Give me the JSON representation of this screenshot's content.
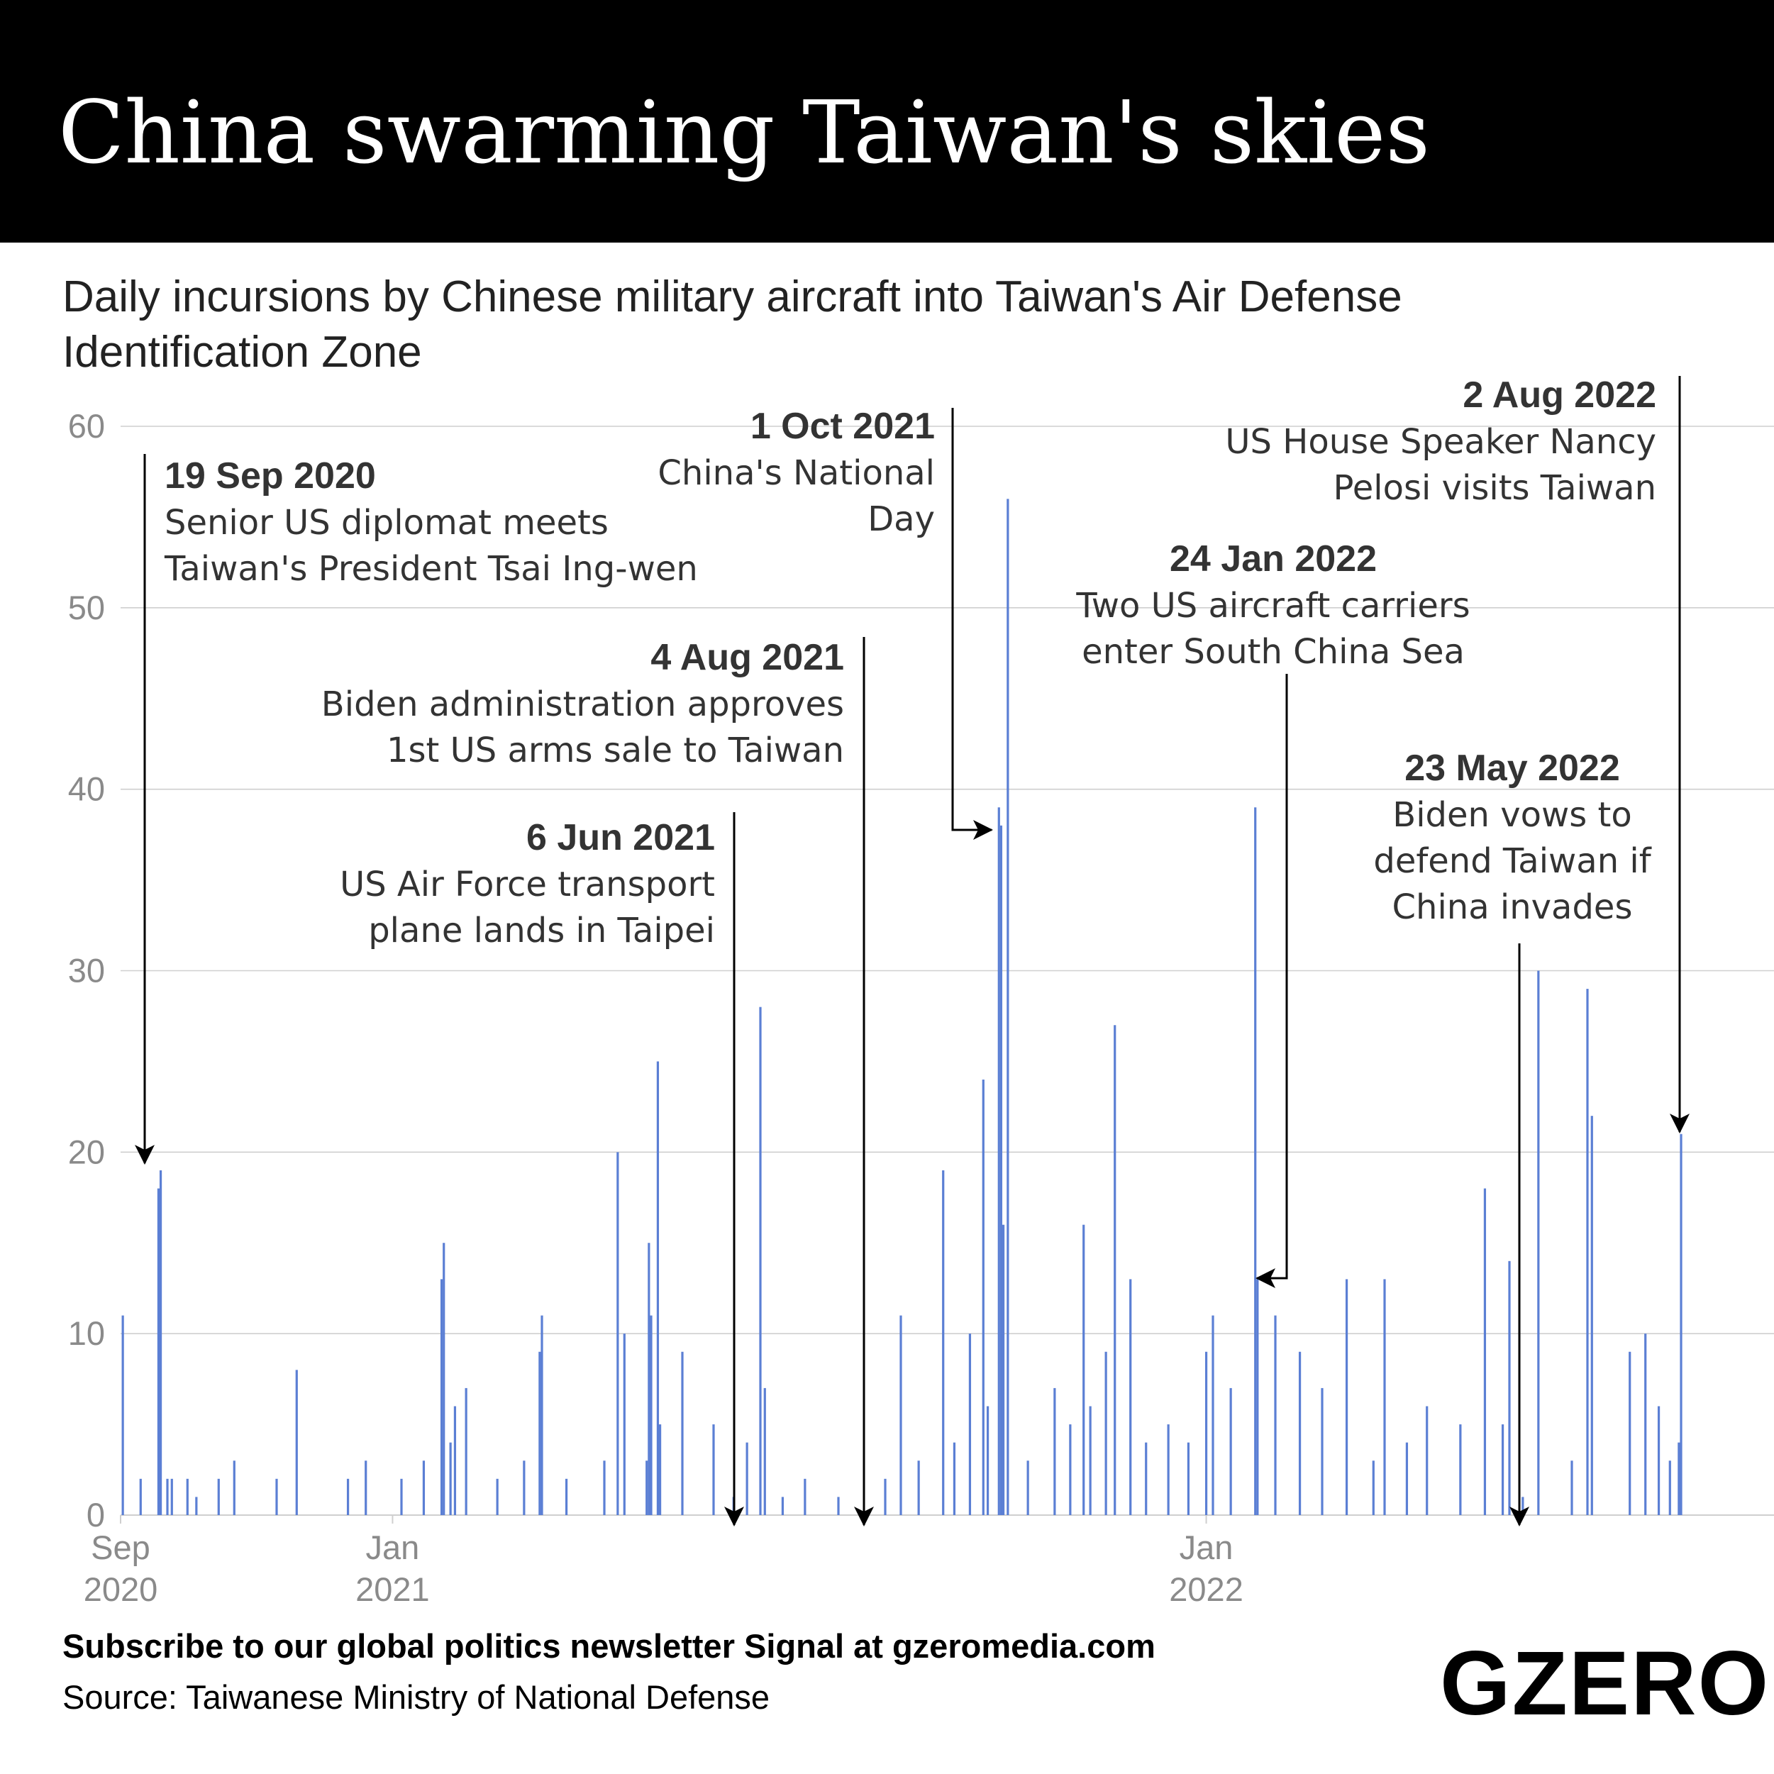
{
  "header": {
    "title": "China swarming Taiwan's skies"
  },
  "subtitle": "Daily incursions by Chinese military aircraft into Taiwan's Air Defense Identification Zone",
  "footer": {
    "cta": "Subscribe to our global politics newsletter Signal at gzeromedia.com",
    "source": "Source: Taiwanese Ministry of National Defense",
    "logo": "GZERO"
  },
  "colors": {
    "bar": "#5b7fd4",
    "grid": "#cfcfcf",
    "axis_text": "#8a8a8a",
    "annotation": "#333333",
    "header_bg": "#000000"
  },
  "chart_data": {
    "type": "bar",
    "title": "",
    "xlabel": "",
    "ylabel": "",
    "ylim": [
      0,
      60
    ],
    "yticks": [
      "0",
      "10",
      "20",
      "30",
      "40",
      "50",
      "60"
    ],
    "xticks": [
      {
        "date": "2020-09-01",
        "line1": "Sep",
        "line2": "2020"
      },
      {
        "date": "2021-01-01",
        "line1": "Jan",
        "line2": "2021"
      },
      {
        "date": "2022-01-01",
        "line1": "Jan",
        "line2": "2022"
      }
    ],
    "xlim": [
      "2020-09-01",
      "2022-08-02"
    ],
    "grid": true,
    "series": [
      {
        "values": [
          [
            "2020-09-02",
            11
          ],
          [
            "2020-09-10",
            2
          ],
          [
            "2020-09-18",
            18
          ],
          [
            "2020-09-19",
            19
          ],
          [
            "2020-09-22",
            2
          ],
          [
            "2020-09-24",
            2
          ],
          [
            "2020-10-01",
            2
          ],
          [
            "2020-10-05",
            1
          ],
          [
            "2020-10-15",
            2
          ],
          [
            "2020-10-22",
            3
          ],
          [
            "2020-11-10",
            2
          ],
          [
            "2020-11-19",
            8
          ],
          [
            "2020-12-12",
            2
          ],
          [
            "2020-12-20",
            3
          ],
          [
            "2021-01-05",
            2
          ],
          [
            "2021-01-15",
            3
          ],
          [
            "2021-01-23",
            13
          ],
          [
            "2021-01-24",
            15
          ],
          [
            "2021-01-27",
            4
          ],
          [
            "2021-01-29",
            6
          ],
          [
            "2021-02-03",
            7
          ],
          [
            "2021-02-17",
            2
          ],
          [
            "2021-03-01",
            3
          ],
          [
            "2021-03-08",
            9
          ],
          [
            "2021-03-09",
            11
          ],
          [
            "2021-03-20",
            2
          ],
          [
            "2021-04-06",
            3
          ],
          [
            "2021-04-12",
            20
          ],
          [
            "2021-04-15",
            10
          ],
          [
            "2021-04-25",
            3
          ],
          [
            "2021-04-26",
            15
          ],
          [
            "2021-04-27",
            11
          ],
          [
            "2021-04-30",
            25
          ],
          [
            "2021-05-01",
            5
          ],
          [
            "2021-05-11",
            9
          ],
          [
            "2021-05-25",
            5
          ],
          [
            "2021-06-03",
            1
          ],
          [
            "2021-06-09",
            4
          ],
          [
            "2021-06-15",
            28
          ],
          [
            "2021-06-17",
            7
          ],
          [
            "2021-06-25",
            1
          ],
          [
            "2021-07-05",
            2
          ],
          [
            "2021-07-20",
            1
          ],
          [
            "2021-08-10",
            2
          ],
          [
            "2021-08-17",
            11
          ],
          [
            "2021-08-25",
            3
          ],
          [
            "2021-09-05",
            19
          ],
          [
            "2021-09-10",
            4
          ],
          [
            "2021-09-17",
            10
          ],
          [
            "2021-09-23",
            24
          ],
          [
            "2021-09-25",
            6
          ],
          [
            "2021-09-30",
            39
          ],
          [
            "2021-10-01",
            38
          ],
          [
            "2021-10-02",
            16
          ],
          [
            "2021-10-04",
            56
          ],
          [
            "2021-10-13",
            3
          ],
          [
            "2021-10-25",
            7
          ],
          [
            "2021-11-01",
            5
          ],
          [
            "2021-11-07",
            16
          ],
          [
            "2021-11-10",
            6
          ],
          [
            "2021-11-17",
            9
          ],
          [
            "2021-11-21",
            27
          ],
          [
            "2021-11-28",
            13
          ],
          [
            "2021-12-05",
            4
          ],
          [
            "2021-12-15",
            5
          ],
          [
            "2021-12-24",
            4
          ],
          [
            "2022-01-01",
            9
          ],
          [
            "2022-01-04",
            11
          ],
          [
            "2022-01-12",
            7
          ],
          [
            "2022-01-23",
            39
          ],
          [
            "2022-01-24",
            13
          ],
          [
            "2022-02-01",
            11
          ],
          [
            "2022-02-12",
            9
          ],
          [
            "2022-02-22",
            7
          ],
          [
            "2022-03-05",
            13
          ],
          [
            "2022-03-17",
            3
          ],
          [
            "2022-03-22",
            13
          ],
          [
            "2022-04-01",
            4
          ],
          [
            "2022-04-10",
            6
          ],
          [
            "2022-04-25",
            5
          ],
          [
            "2022-05-06",
            18
          ],
          [
            "2022-05-14",
            5
          ],
          [
            "2022-05-17",
            14
          ],
          [
            "2022-05-23",
            1
          ],
          [
            "2022-05-30",
            30
          ],
          [
            "2022-06-14",
            3
          ],
          [
            "2022-06-21",
            29
          ],
          [
            "2022-06-23",
            22
          ],
          [
            "2022-07-10",
            9
          ],
          [
            "2022-07-17",
            10
          ],
          [
            "2022-07-23",
            6
          ],
          [
            "2022-07-28",
            3
          ],
          [
            "2022-08-01",
            4
          ],
          [
            "2022-08-02",
            21
          ]
        ]
      }
    ],
    "annotations": [
      {
        "date": "2020-09-19",
        "title": "19 Sep 2020",
        "lines": [
          "Senior US diplomat meets",
          "Taiwan's President Tsai Ing-wen"
        ]
      },
      {
        "date": "2021-06-06",
        "title": "6 Jun 2021",
        "lines": [
          "US Air Force transport",
          "plane lands in Taipei"
        ]
      },
      {
        "date": "2021-08-04",
        "title": "4 Aug 2021",
        "lines": [
          "Biden administration approves",
          "1st US arms sale to Taiwan"
        ]
      },
      {
        "date": "2021-10-01",
        "title": "1 Oct 2021",
        "lines": [
          "China's National",
          "Day"
        ]
      },
      {
        "date": "2022-01-24",
        "title": "24 Jan 2022",
        "lines": [
          "Two US aircraft carriers",
          "enter South China Sea"
        ]
      },
      {
        "date": "2022-05-23",
        "title": "23 May 2022",
        "lines": [
          "Biden vows to",
          "defend Taiwan if",
          "China invades"
        ]
      },
      {
        "date": "2022-08-02",
        "title": "2 Aug 2022",
        "lines": [
          "US House Speaker Nancy",
          "Pelosi visits Taiwan"
        ]
      }
    ]
  }
}
